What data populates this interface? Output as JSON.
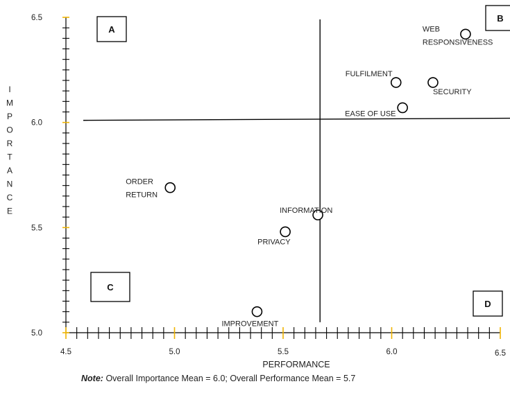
{
  "chart_data": {
    "type": "scatter",
    "xlabel": "PERFORMANCE",
    "ylabel": "IMPORTANCE",
    "xlim": [
      4.5,
      6.5
    ],
    "ylim": [
      5.0,
      6.5
    ],
    "x_ticks": [
      "4.5",
      "5.0",
      "5.5",
      "6.0",
      "6.5"
    ],
    "y_ticks": [
      "6.5",
      "6.0",
      "5.5",
      "5.0"
    ],
    "grid": false,
    "points": [
      {
        "label": "WEB RESPONSIVENESS",
        "x": 6.34,
        "y": 6.42
      },
      {
        "label": "FULFILMENT",
        "x": 6.02,
        "y": 6.19
      },
      {
        "label": "SECURITY",
        "x": 6.19,
        "y": 6.19
      },
      {
        "label": "EASE OF USE",
        "x": 6.05,
        "y": 6.07
      },
      {
        "label": "ORDER RETURN",
        "x": 4.98,
        "y": 5.69
      },
      {
        "label": "INFORMATION",
        "x": 5.66,
        "y": 5.56
      },
      {
        "label": "PRIVACY",
        "x": 5.51,
        "y": 5.48
      },
      {
        "label": "IMPROVEMENT",
        "x": 5.38,
        "y": 5.1
      }
    ],
    "mean_lines": {
      "performance": 5.67,
      "importance": 6.01
    },
    "quadrants": [
      "A",
      "B",
      "C",
      "D"
    ],
    "accent_color": "#f0b400",
    "marker_color": "#000000"
  },
  "note": {
    "label": "Note:",
    "text": "Overall Importance Mean = 6.0; Overall Performance Mean = 5.7"
  }
}
